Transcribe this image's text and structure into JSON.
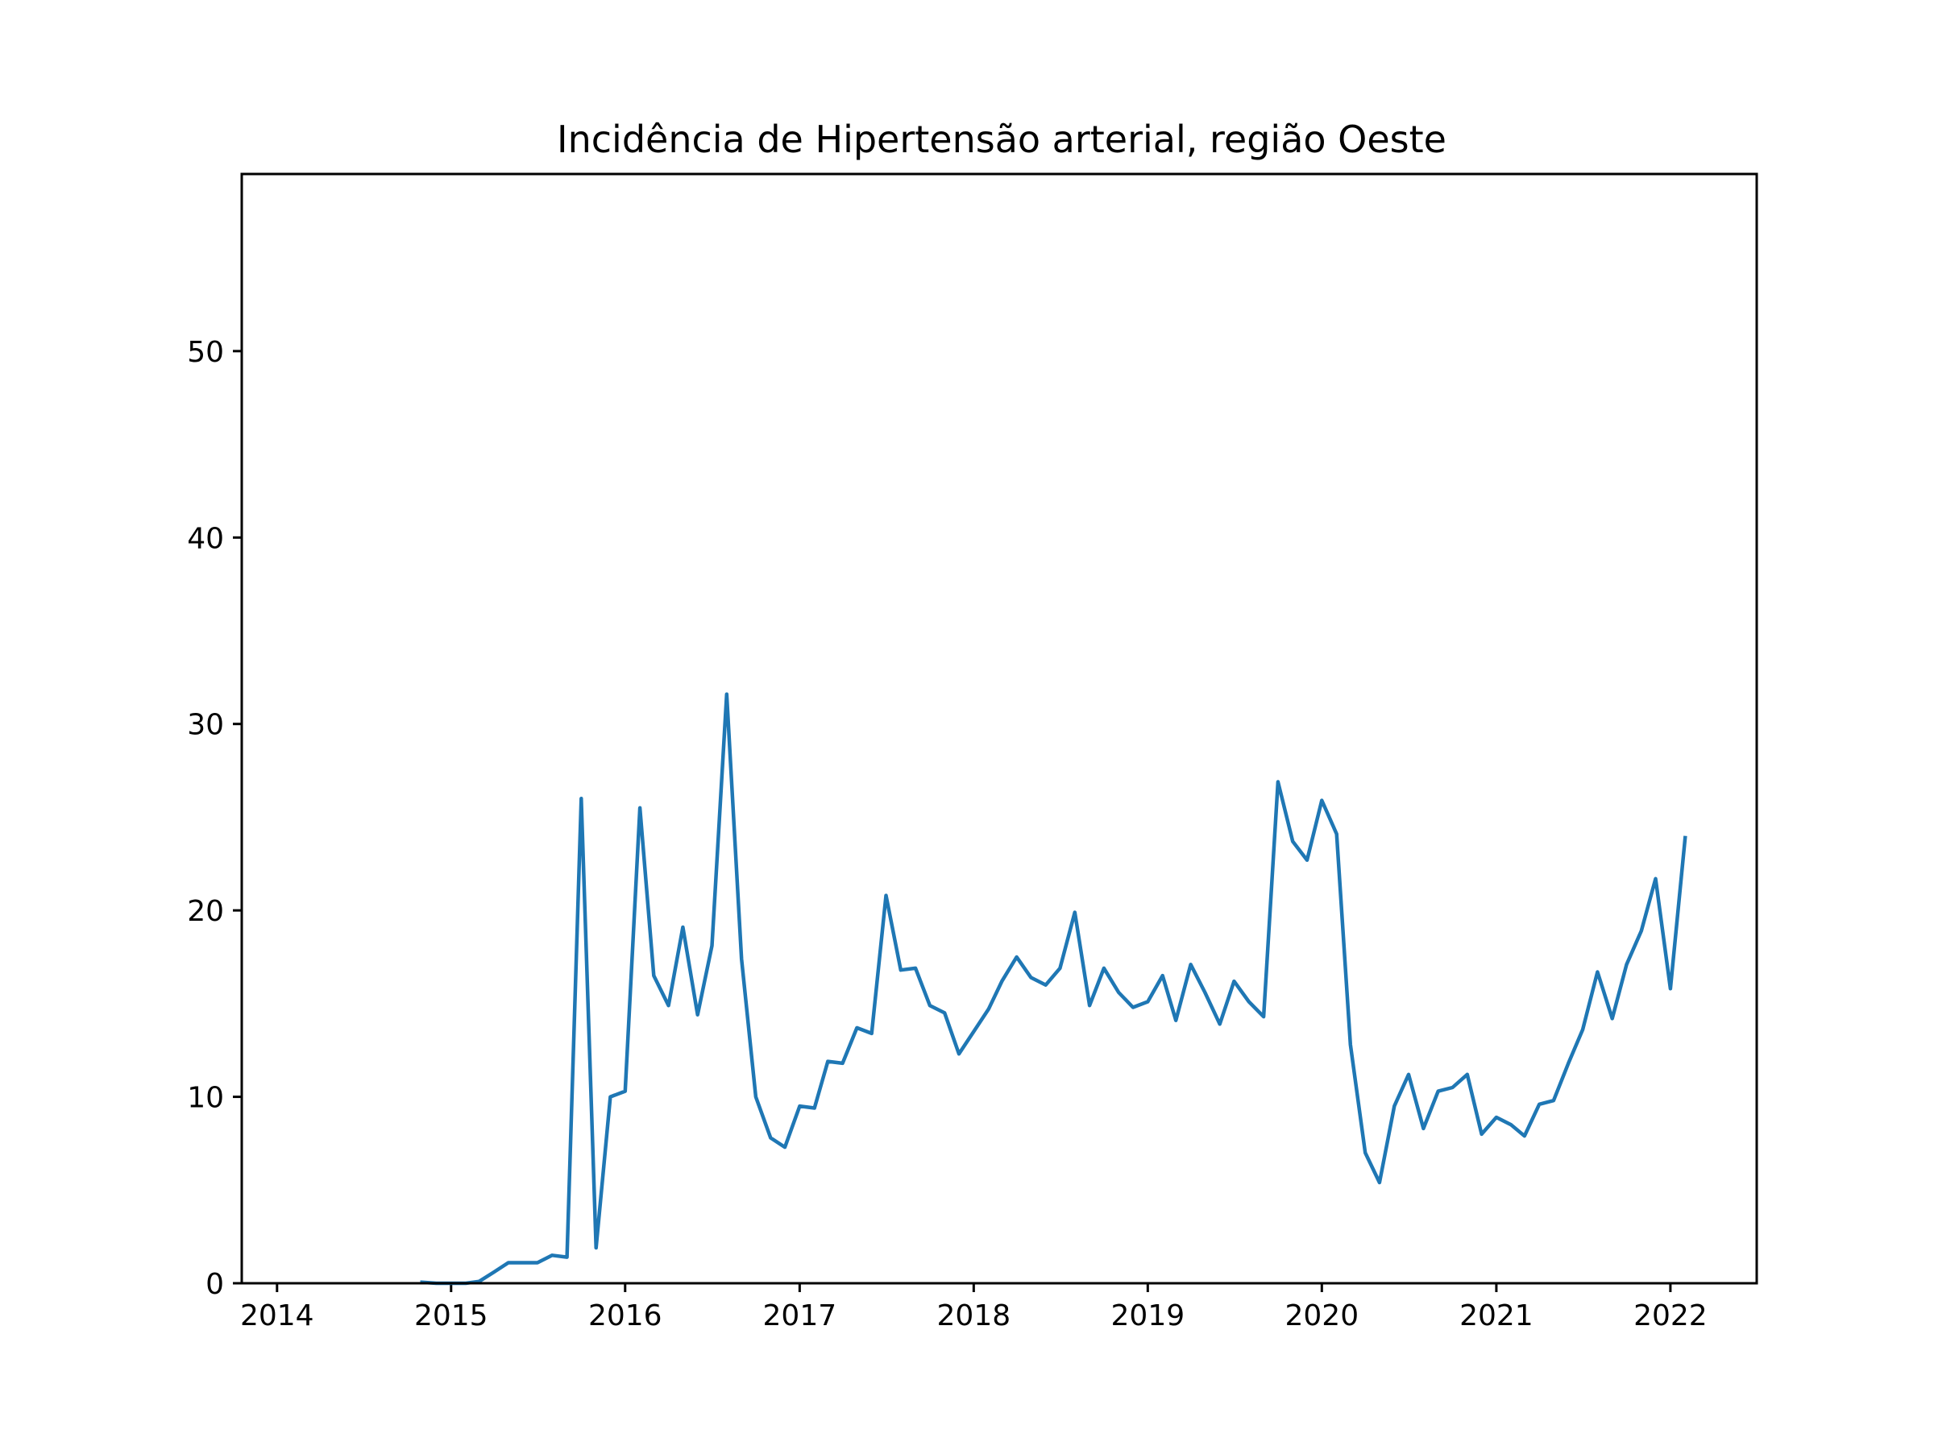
{
  "chart_data": {
    "type": "line",
    "title": "Incidência de Hipertensão arterial, região Oeste",
    "xlabel": "",
    "ylabel": "",
    "x_axis": "date",
    "xlim": [
      "2013-10-19",
      "2022-07-01"
    ],
    "ylim": [
      0,
      59.5
    ],
    "grid": false,
    "legend": "none",
    "x_ticks": [
      {
        "date": "2014-01-01",
        "label": "2014"
      },
      {
        "date": "2015-01-01",
        "label": "2015"
      },
      {
        "date": "2016-01-01",
        "label": "2016"
      },
      {
        "date": "2017-01-01",
        "label": "2017"
      },
      {
        "date": "2018-01-01",
        "label": "2018"
      },
      {
        "date": "2019-01-01",
        "label": "2019"
      },
      {
        "date": "2020-01-01",
        "label": "2020"
      },
      {
        "date": "2021-01-01",
        "label": "2021"
      },
      {
        "date": "2022-01-01",
        "label": "2022"
      }
    ],
    "y_ticks": [
      {
        "value": 0,
        "label": "0"
      },
      {
        "value": 10,
        "label": "10"
      },
      {
        "value": 20,
        "label": "20"
      },
      {
        "value": 30,
        "label": "30"
      },
      {
        "value": 40,
        "label": "40"
      },
      {
        "value": 50,
        "label": "50"
      }
    ],
    "series": [
      {
        "color": "#1f77b4",
        "x": [
          "2014-11-01",
          "2014-12-01",
          "2015-01-01",
          "2015-02-01",
          "2015-03-01",
          "2015-04-01",
          "2015-05-01",
          "2015-06-01",
          "2015-07-01",
          "2015-08-01",
          "2015-09-01",
          "2015-10-01",
          "2015-11-01",
          "2015-12-01",
          "2016-01-01",
          "2016-02-01",
          "2016-03-01",
          "2016-04-01",
          "2016-05-01",
          "2016-06-01",
          "2016-07-01",
          "2016-08-01",
          "2016-09-01",
          "2016-10-01",
          "2016-11-01",
          "2016-12-01",
          "2017-01-01",
          "2017-02-01",
          "2017-03-01",
          "2017-04-01",
          "2017-05-01",
          "2017-06-01",
          "2017-07-01",
          "2017-08-01",
          "2017-09-01",
          "2017-10-01",
          "2017-11-01",
          "2017-12-01",
          "2018-01-01",
          "2018-02-01",
          "2018-03-01",
          "2018-04-01",
          "2018-05-01",
          "2018-06-01",
          "2018-07-01",
          "2018-08-01",
          "2018-09-01",
          "2018-10-01",
          "2018-11-01",
          "2018-12-01",
          "2019-01-01",
          "2019-02-01",
          "2019-03-01",
          "2019-04-01",
          "2019-05-01",
          "2019-06-01",
          "2019-07-01",
          "2019-08-01",
          "2019-09-01",
          "2019-10-01",
          "2019-11-01",
          "2019-12-01",
          "2020-01-01",
          "2020-02-01",
          "2020-03-01",
          "2020-04-01",
          "2020-05-01",
          "2020-06-01",
          "2020-07-01",
          "2020-08-01",
          "2020-09-01",
          "2020-10-01",
          "2020-11-01",
          "2020-12-01",
          "2021-01-01",
          "2021-02-01",
          "2021-03-01",
          "2021-04-01",
          "2021-05-01",
          "2021-06-01",
          "2021-07-01",
          "2021-08-01",
          "2021-09-01",
          "2021-10-01",
          "2021-11-01",
          "2021-12-01",
          "2022-01-01",
          "2022-02-01"
        ],
        "values": [
          0.05,
          0.0,
          0.0,
          0.0,
          0.1,
          0.6,
          1.1,
          1.1,
          1.1,
          1.5,
          1.4,
          26.0,
          1.9,
          10.0,
          10.3,
          25.5,
          16.5,
          14.9,
          19.1,
          14.4,
          18.1,
          31.6,
          17.4,
          10.0,
          7.8,
          7.3,
          9.5,
          9.4,
          11.9,
          11.8,
          13.7,
          13.4,
          20.8,
          16.8,
          16.9,
          14.9,
          14.5,
          12.3,
          13.5,
          14.7,
          16.2,
          17.5,
          16.4,
          16.0,
          16.9,
          19.9,
          14.9,
          16.9,
          15.6,
          14.8,
          15.1,
          16.5,
          14.1,
          17.1,
          15.6,
          13.9,
          16.2,
          15.1,
          14.3,
          26.9,
          23.7,
          22.7,
          25.9,
          24.1,
          12.8,
          7.0,
          5.4,
          9.5,
          11.2,
          8.3,
          10.3,
          10.5,
          11.2,
          8.0,
          8.9,
          8.5,
          7.9,
          9.6,
          9.8,
          11.8,
          13.6,
          16.7,
          14.2,
          17.1,
          18.9,
          21.7,
          15.8,
          23.9
        ]
      }
    ]
  }
}
